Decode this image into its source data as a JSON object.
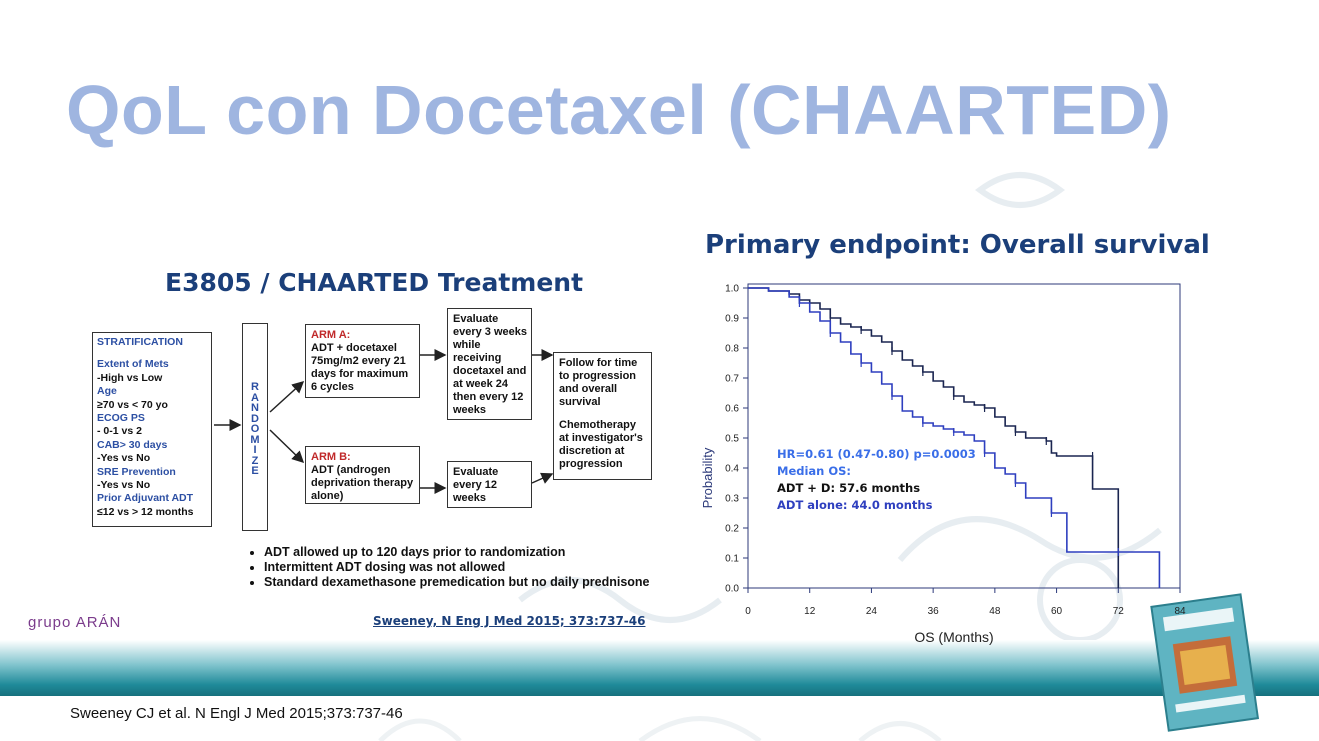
{
  "slide": {
    "title": "QoL con Docetaxel (CHAARTED)",
    "footer_reference": "Sweeney CJ et al. N Engl J Med 2015;373:737-46",
    "logo_label": "grupo ARÁN",
    "colors": {
      "title": "#9fb5e0",
      "panel_title": "#1b3f7a",
      "teal_band": "#1f8a99",
      "arm_label": "#c0292a",
      "strat_heading": "#2c4fa3"
    }
  },
  "left_panel": {
    "title": "E3805 / CHAARTED Treatment",
    "stratification": {
      "heading": "STRATIFICATION",
      "lines": [
        {
          "text": "Extent of Mets",
          "style": "blue"
        },
        {
          "text": "-High vs Low",
          "style": "plain"
        },
        {
          "text": "Age",
          "style": "blue"
        },
        {
          "text": "≥70 vs < 70 yo",
          "style": "plain"
        },
        {
          "text": "ECOG PS",
          "style": "blue"
        },
        {
          "text": "- 0-1 vs 2",
          "style": "plain"
        },
        {
          "text": "CAB> 30 days",
          "style": "blue"
        },
        {
          "text": "-Yes vs No",
          "style": "plain"
        },
        {
          "text": "SRE Prevention",
          "style": "blue"
        },
        {
          "text": "-Yes vs No",
          "style": "plain"
        },
        {
          "text": "Prior Adjuvant ADT",
          "style": "blue"
        },
        {
          "text": "≤12 vs > 12 months",
          "style": "plain"
        }
      ]
    },
    "randomize_letters": [
      "R",
      "A",
      "N",
      "D",
      "O",
      "M",
      "I",
      "Z",
      "E"
    ],
    "arm_a": {
      "label": "ARM A:",
      "lines": [
        "ADT  + docetaxel",
        "75mg/m2 every 21",
        "days for maximum",
        "6 cycles"
      ]
    },
    "arm_b": {
      "label": "ARM B:",
      "lines": [
        "ADT  (androgen",
        "deprivation therapy",
        "alone)"
      ]
    },
    "evaluate_a": [
      "Evaluate",
      "every 3 weeks",
      "while",
      "receiving",
      "docetaxel and",
      "at week 24",
      "then every 12",
      "weeks"
    ],
    "evaluate_b": [
      "Evaluate",
      "every 12",
      "weeks"
    ],
    "follow_up": {
      "lines1": [
        "Follow for time",
        "to progression",
        "and overall",
        "survival"
      ],
      "lines2": [
        "Chemotherapy",
        "at investigator's",
        "discretion at",
        "progression"
      ]
    },
    "bullets": [
      "ADT allowed up to 120 days prior to randomization",
      "Intermittent ADT dosing was not allowed",
      "Standard dexamethasone premedication but no daily prednisone"
    ],
    "citation": "Sweeney, N Eng J Med 2015; 373:737-46"
  },
  "right_panel": {
    "title": "Primary endpoint: Overall survival",
    "chart_data": {
      "type": "line",
      "title": "",
      "xlabel": "OS (Months)",
      "ylabel": "Probability",
      "xlim": [
        0,
        84
      ],
      "ylim": [
        0,
        1.0
      ],
      "x_ticks": [
        0,
        12,
        24,
        36,
        48,
        60,
        72,
        84
      ],
      "y_ticks": [
        0.0,
        0.1,
        0.2,
        0.3,
        0.4,
        0.5,
        0.6,
        0.7,
        0.8,
        0.9,
        1.0
      ],
      "y_tick_labels": [
        "0.0",
        "0.1",
        "0.2",
        "0.3",
        "0.4",
        "0.5",
        "0.6",
        "0.7",
        "0.8",
        "0.9",
        "1.0"
      ],
      "grid": false,
      "series": [
        {
          "name": "ADT + D",
          "color": "#1a2550",
          "points": [
            [
              0,
              1.0
            ],
            [
              4,
              0.99
            ],
            [
              8,
              0.98
            ],
            [
              10,
              0.96
            ],
            [
              12,
              0.95
            ],
            [
              14,
              0.93
            ],
            [
              16,
              0.9
            ],
            [
              18,
              0.88
            ],
            [
              20,
              0.87
            ],
            [
              22,
              0.86
            ],
            [
              24,
              0.84
            ],
            [
              26,
              0.82
            ],
            [
              28,
              0.79
            ],
            [
              30,
              0.76
            ],
            [
              32,
              0.74
            ],
            [
              34,
              0.72
            ],
            [
              36,
              0.69
            ],
            [
              38,
              0.67
            ],
            [
              40,
              0.64
            ],
            [
              42,
              0.62
            ],
            [
              44,
              0.61
            ],
            [
              46,
              0.6
            ],
            [
              48,
              0.57
            ],
            [
              50,
              0.54
            ],
            [
              52,
              0.52
            ],
            [
              54,
              0.5
            ],
            [
              56,
              0.5
            ],
            [
              58,
              0.49
            ],
            [
              59,
              0.45
            ],
            [
              60,
              0.44
            ],
            [
              67,
              0.44
            ],
            [
              67,
              0.33
            ],
            [
              72,
              0.33
            ],
            [
              72,
              0.0
            ]
          ]
        },
        {
          "name": "ADT alone",
          "color": "#2e3fbf",
          "points": [
            [
              0,
              1.0
            ],
            [
              4,
              0.99
            ],
            [
              8,
              0.97
            ],
            [
              10,
              0.95
            ],
            [
              12,
              0.92
            ],
            [
              14,
              0.89
            ],
            [
              16,
              0.85
            ],
            [
              18,
              0.82
            ],
            [
              20,
              0.78
            ],
            [
              22,
              0.75
            ],
            [
              24,
              0.72
            ],
            [
              26,
              0.68
            ],
            [
              28,
              0.64
            ],
            [
              30,
              0.59
            ],
            [
              32,
              0.57
            ],
            [
              34,
              0.55
            ],
            [
              36,
              0.54
            ],
            [
              38,
              0.53
            ],
            [
              40,
              0.52
            ],
            [
              42,
              0.51
            ],
            [
              44,
              0.49
            ],
            [
              46,
              0.45
            ],
            [
              48,
              0.4
            ],
            [
              50,
              0.38
            ],
            [
              52,
              0.35
            ],
            [
              54,
              0.3
            ],
            [
              56,
              0.3
            ],
            [
              59,
              0.25
            ],
            [
              62,
              0.25
            ],
            [
              62,
              0.12
            ],
            [
              72,
              0.12
            ],
            [
              80,
              0.12
            ],
            [
              80,
              0.0
            ]
          ]
        }
      ],
      "annotations": [
        {
          "text": "HR=0.61 (0.47-0.80) p=0.0003",
          "color": "#3a6ee8"
        },
        {
          "text": "Median OS:",
          "color": "#3a6ee8"
        },
        {
          "text": "ADT + D: 57.6 months",
          "color": "#111111"
        },
        {
          "text": "ADT alone: 44.0 months",
          "color": "#2e3fbf"
        }
      ]
    }
  }
}
